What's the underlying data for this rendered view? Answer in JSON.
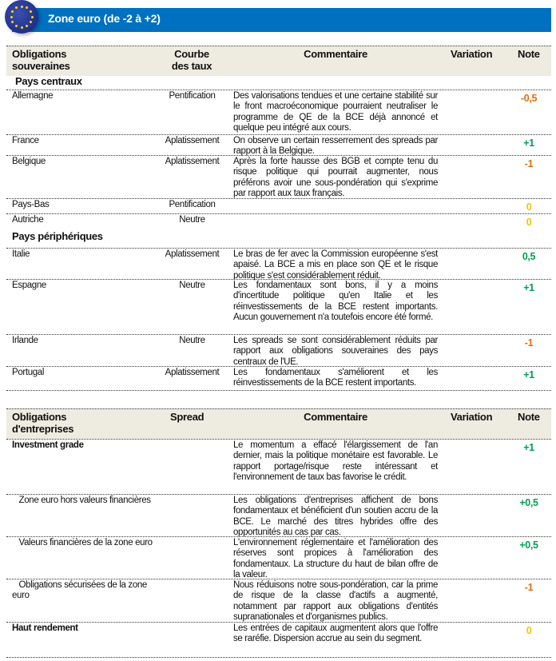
{
  "banner": {
    "title": "Zone euro (de -2 à +2)",
    "icon": "eu-flag-icon"
  },
  "colors": {
    "banner": "#0070C0",
    "header_bg": "#EEEBE0",
    "negative": "#E46C0A",
    "positive": "#00A050",
    "neutral": "#FFC000"
  },
  "sovereign": {
    "headers": {
      "name": "Obligations souveraines",
      "curve": "Courbe des taux",
      "comment": "Commentaire",
      "variation": "Variation",
      "note": "Note"
    },
    "rows": [
      {
        "type": "group",
        "name": "Pays centraux"
      },
      {
        "name": "Allemagne",
        "curve": "Pentification",
        "comment": "Des valorisations tendues et une certaine stabilité sur le front macroéconomique pourraient neutraliser le programme de QE de la BCE déjà annoncé et quelque peu intégré aux cours.",
        "note": "-0,5",
        "tone": "negative"
      },
      {
        "name": "France",
        "curve": "Aplatissement",
        "comment": "On observe un certain resserrement des spreads par rapport à la Belgique.",
        "note": "+1",
        "tone": "positive"
      },
      {
        "name": "Belgique",
        "curve": "Aplatissement",
        "comment": "Après la forte hausse des BGB et compte tenu du risque politique qui pourrait augmenter, nous préférons avoir une sous-pondération qui s'exprime par rapport aux taux français.",
        "note": "-1",
        "tone": "negative"
      },
      {
        "name": "Pays-Bas",
        "curve": "Pentification",
        "comment": "",
        "note": "0",
        "tone": "neutral"
      },
      {
        "name": "Autriche",
        "curve": "Neutre",
        "comment": "",
        "note": "0",
        "tone": "neutral"
      },
      {
        "type": "group",
        "name": "Pays périphériques"
      },
      {
        "name": "Italie",
        "curve": "Aplatissement",
        "comment": "Le bras de fer avec la Commission européenne s'est apaisé. La BCE a mis en place son QE et le risque politique s'est considérablement réduit.",
        "note": "0,5",
        "tone": "positive"
      },
      {
        "name": "Espagne",
        "curve": "Neutre",
        "comment": "Les fondamentaux sont bons, il y a moins d'incertitude politique qu'en Italie et les réinvestissements de la BCE restent importants. Aucun gouvernement n'a toutefois encore été formé.",
        "note": "+1",
        "tone": "positive"
      },
      {
        "name": "Irlande",
        "curve": "Neutre",
        "comment": "Les spreads se sont considérablement réduits par rapport aux obligations souveraines des pays centraux de l'UE.",
        "note": "-1",
        "tone": "negative"
      },
      {
        "name": "Portugal",
        "curve": "Aplatissement",
        "comment": "Les fondamentaux s'améliorent et les réinvestissements de la BCE restent importants.",
        "note": "+1",
        "tone": "positive"
      }
    ]
  },
  "corporate": {
    "headers": {
      "name": "Obligations d'entreprises",
      "curve": "Spread",
      "comment": "Commentaire",
      "variation": "Variation",
      "note": "Note"
    },
    "rows": [
      {
        "name": "Investment grade",
        "bold": true,
        "curve": "",
        "comment": "Le momentum a effacé l'élargissement de l'an dernier, mais la politique monétaire est favorable. Le rapport portage/risque reste intéressant et l'environnement de taux bas favorise le crédit.",
        "note": "+1",
        "tone": "positive"
      },
      {
        "name": "   Zone euro hors valeurs financières",
        "curve": "",
        "comment": "Les obligations d'entreprises affichent de bons fondamentaux et bénéficient d'un soutien accru de la BCE. Le marché des titres hybrides offre des opportunités au cas par cas.",
        "note": "+0,5",
        "tone": "positive"
      },
      {
        "name": "   Valeurs financières de la zone euro",
        "curve": "",
        "comment": "L'environnement réglementaire et l'amélioration des réserves sont propices à l'amélioration des fondamentaux. La structure du haut de bilan offre de la valeur.",
        "note": "+0,5",
        "tone": "positive"
      },
      {
        "name": "   Obligations sécurisées de la zone euro",
        "curve": "",
        "comment": "Nous réduisons notre sous-pondération, car la prime de risque de la classe d'actifs a augmenté, notamment par rapport aux obligations d'entités supranationales et d'organismes publics.",
        "note": "-1",
        "tone": "negative"
      },
      {
        "name": "Haut rendement",
        "bold": true,
        "curve": "",
        "comment": "Les entrées de capitaux augmentent alors que l'offre se raréfie. Dispersion accrue au sein du segment.",
        "note": "0",
        "tone": "neutral"
      }
    ]
  }
}
